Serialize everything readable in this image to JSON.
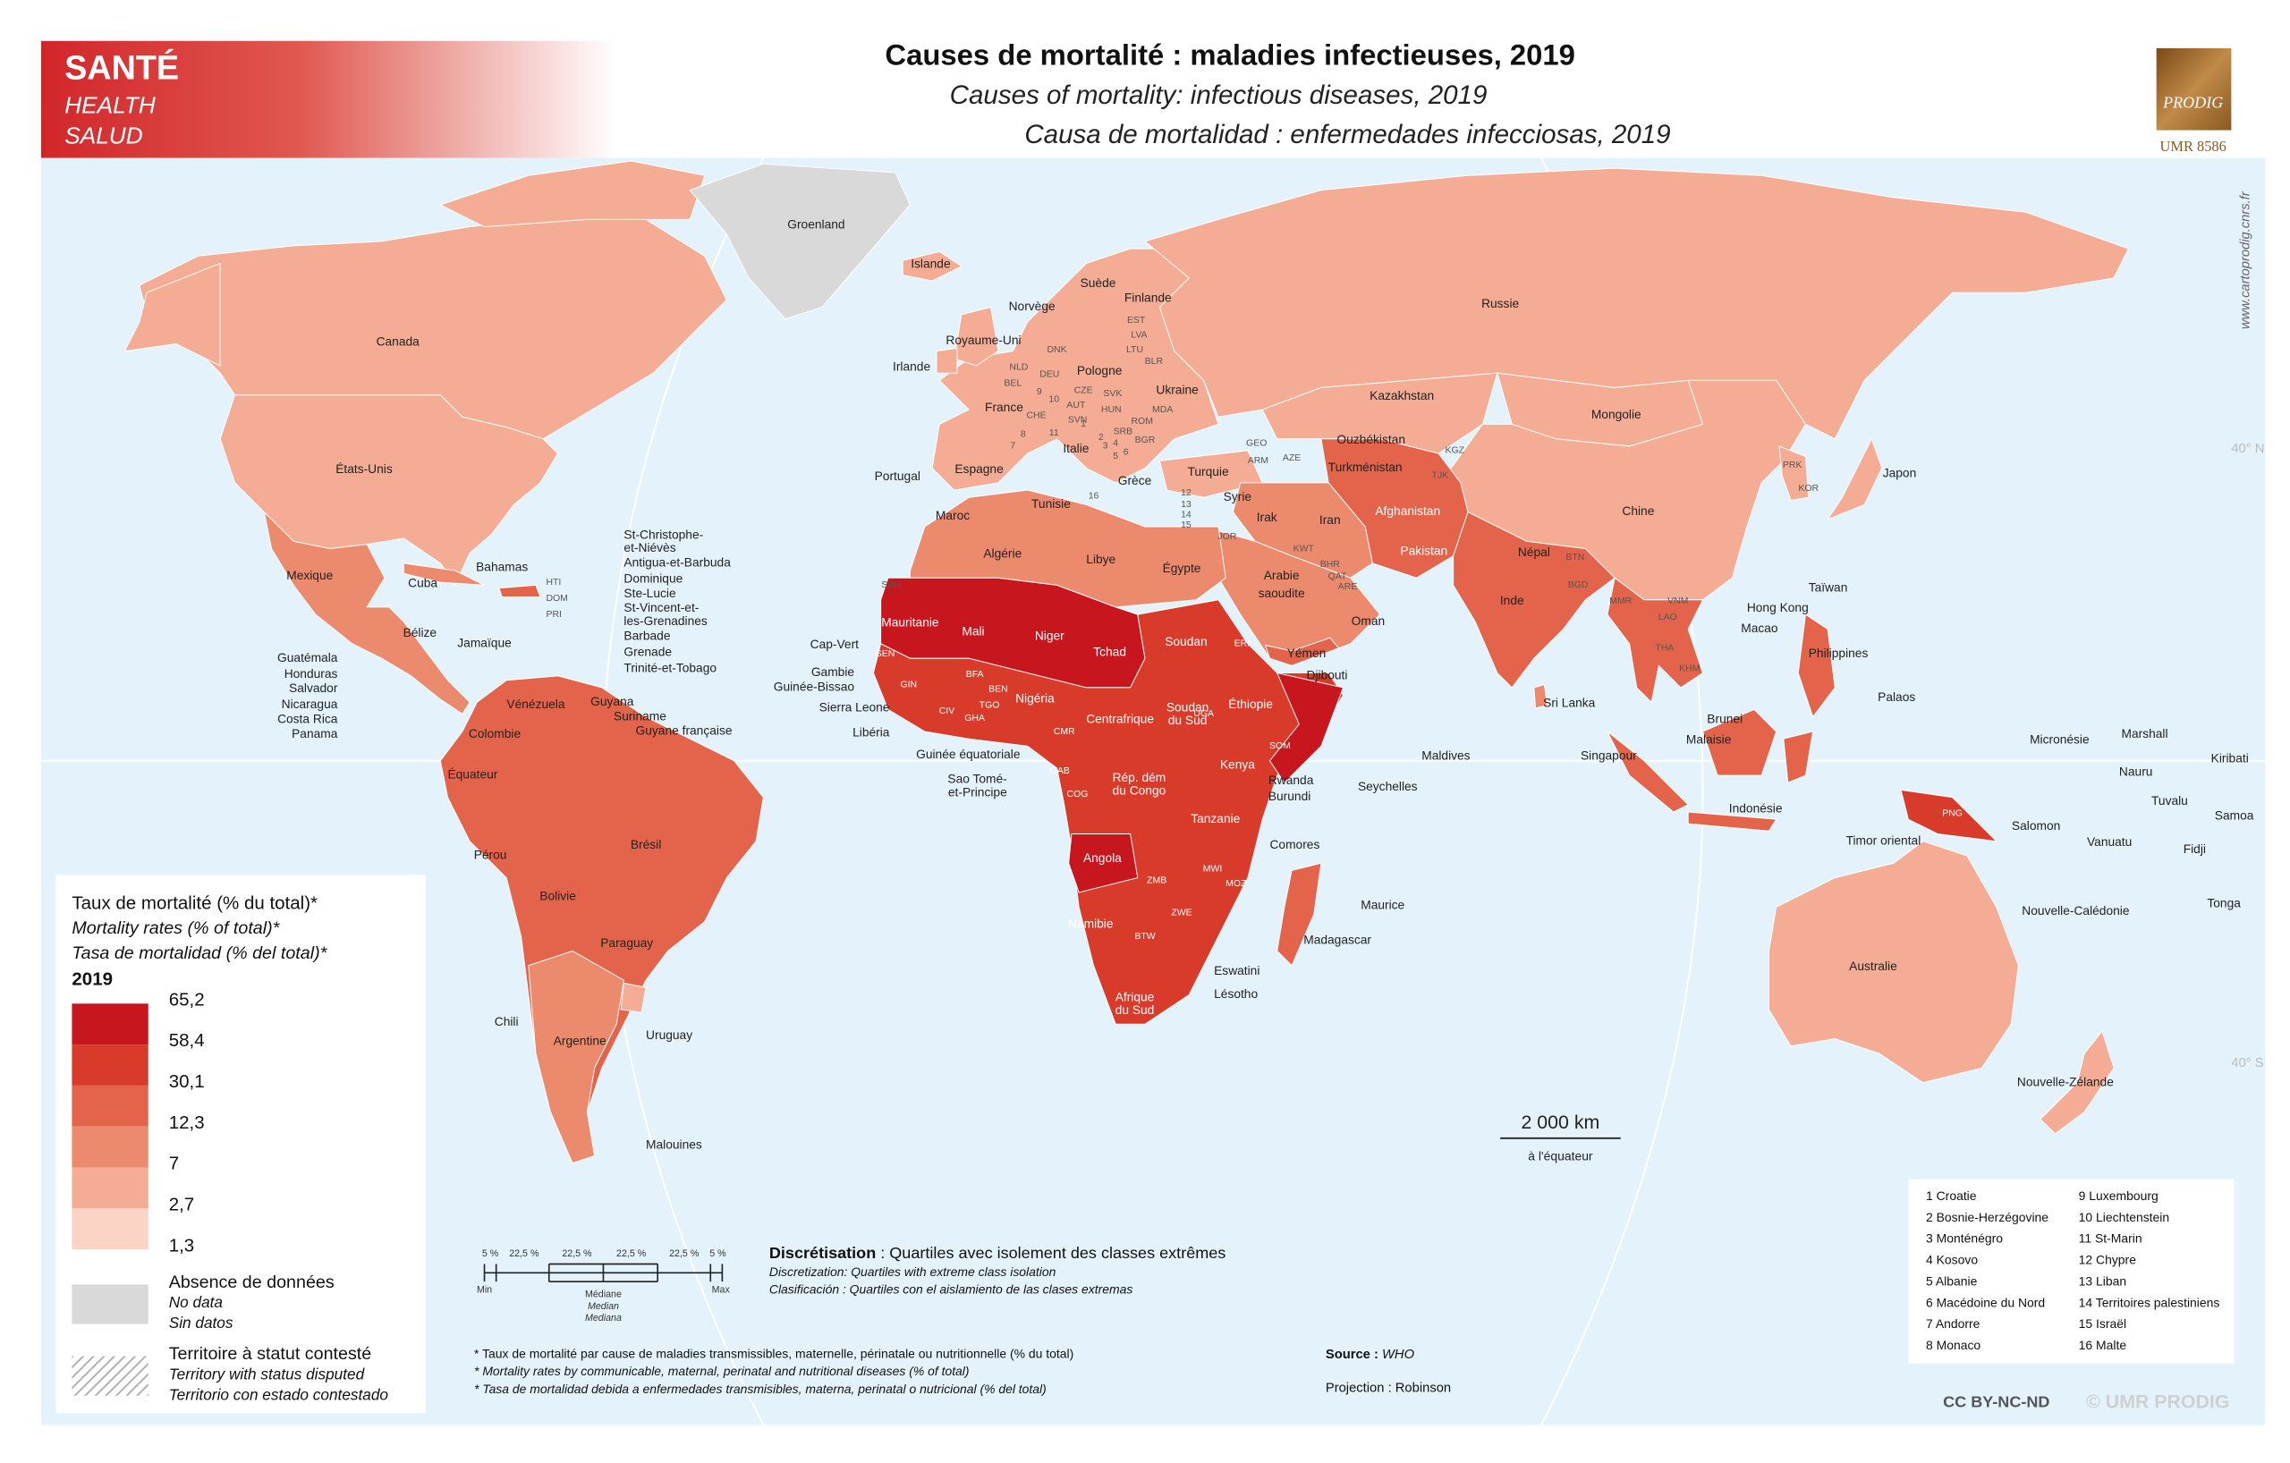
{
  "header": {
    "theme": [
      "SANTÉ",
      "HEALTH",
      "SALUD"
    ],
    "title": "Causes de mortalité : maladies infectieuses, 2019",
    "title_en": "Causes of mortality: infectious diseases, 2019",
    "title_es": "Causa de mortalidad : enfermedades infecciosas, 2019",
    "logo": "PRODIG",
    "lab": "UMR 8586",
    "website": "www.cartoprodig.cnrs.fr"
  },
  "map": {
    "graticule": [
      "40° N",
      "40° S"
    ],
    "scale": {
      "distance": "2 000 km",
      "note": "à l'équateur"
    },
    "labels": [
      "Canada",
      "États-Unis",
      "Mexique",
      "Cuba",
      "Bahamas",
      "Bélize",
      "Jamaïque",
      "Guatémala",
      "Honduras",
      "Salvador",
      "Nicaragua",
      "Costa Rica",
      "Panama",
      "HTI",
      "DOM",
      "PRI",
      "St-Christophe-",
      "et-Niévès",
      "Antigua-et-Barbuda",
      "Dominique",
      "Ste-Lucie",
      "St-Vincent-et-",
      "les-Grenadines",
      "Barbade",
      "Grenade",
      "Trinité-et-Tobago",
      "Vénézuela",
      "Guyana",
      "Suriname",
      "Guyane française",
      "Colombie",
      "Équateur",
      "Pérou",
      "Brésil",
      "Bolivie",
      "Paraguay",
      "Chili",
      "Argentine",
      "Uruguay",
      "Malouines",
      "Groenland",
      "Islande",
      "Norvège",
      "Suède",
      "Finlande",
      "Royaume-Uni",
      "Irlande",
      "DNK",
      "EST",
      "LVA",
      "LTU",
      "BLR",
      "NLD",
      "DEU",
      "BEL",
      "Pologne",
      "CZE",
      "SVK",
      "Ukraine",
      "France",
      "AUT",
      "HUN",
      "MDA",
      "CHE",
      "SVN",
      "ROM",
      "SRB",
      "BGR",
      "Italie",
      "Espagne",
      "Portugal",
      "Grèce",
      "Turquie",
      "GEO",
      "ARM",
      "AZE",
      "Russie",
      "Kazakhstan",
      "Mongolie",
      "Ouzbékistan",
      "KGZ",
      "Turkménistan",
      "TJK",
      "Chine",
      "PRK",
      "KOR",
      "Japon",
      "Afghanistan",
      "Pakistan",
      "Iran",
      "Irak",
      "Syrie",
      "JOR",
      "Arabie",
      "saoudite",
      "KWT",
      "BHR",
      "QAT",
      "ARE",
      "Oman",
      "Yémen",
      "Inde",
      "Népal",
      "BTN",
      "BGD",
      "MMR",
      "VNM",
      "LAO",
      "THA",
      "KHM",
      "Taïwan",
      "Hong Kong",
      "Macao",
      "Philippines",
      "Palaos",
      "Sri Lanka",
      "Maldives",
      "Brunei",
      "Malaisie",
      "Singapour",
      "Indonésie",
      "Timor oriental",
      "PNG",
      "Australie",
      "Nouvelle-Calédonie",
      "Nouvelle-Zélande",
      "Micronésie",
      "Marshall",
      "Kiribati",
      "Nauru",
      "Tuvalu",
      "Samoa",
      "Salomon",
      "Vanuatu",
      "Fidji",
      "Tonga",
      "Maroc",
      "Tunisie",
      "Algérie",
      "Libye",
      "Égypte",
      "SAH",
      "Mauritanie",
      "Mali",
      "Niger",
      "Tchad",
      "Soudan",
      "ERI",
      "Cap-Vert",
      "Gambie",
      "Guinée-Bissao",
      "SEN",
      "GIN",
      "BFA",
      "Sierra Leone",
      "Libéria",
      "CIV",
      "TGO",
      "BEN",
      "GHA",
      "Nigéria",
      "CMR",
      "Centrafrique",
      "Soudan",
      "du Sud",
      "Éthiopie",
      "Djibouti",
      "SOM",
      "Guinée équatoriale",
      "Sao Tomé-",
      "et-Principe",
      "GAB",
      "COG",
      "Rép. dém",
      "du Congo",
      "UGA",
      "Kenya",
      "Rwanda",
      "Burundi",
      "Tanzanie",
      "Angola",
      "ZMB",
      "MWI",
      "MOZ",
      "Comores",
      "Madagascar",
      "Maurice",
      "Seychelles",
      "ZWE",
      "Namibie",
      "BTW",
      "Afrique",
      "du Sud",
      "Eswatini",
      "Lésotho",
      "1",
      "2",
      "3",
      "4",
      "5",
      "6",
      "7",
      "8",
      "9",
      "10",
      "11",
      "12",
      "13",
      "14",
      "15",
      "16"
    ]
  },
  "legend": {
    "title": "Taux de mortalité (% du total)*",
    "title_en": "Mortality rates (% of total)*",
    "title_es": "Tasa de mortalidad (% del total)*",
    "year": "2019",
    "class_labels": [
      "65,2",
      "58,4",
      "30,1",
      "12,3",
      "7",
      "2,7",
      "1,3"
    ],
    "colors": [
      "#c8161e",
      "#d93b2b",
      "#e3644a",
      "#ec8a6e",
      "#f4ac94",
      "#fbd4c6"
    ],
    "no_data": [
      "Absence de données",
      "No data",
      "Sin datos"
    ],
    "no_data_color": "#d9d9d9",
    "disputed": [
      "Territoire à statut contesté",
      "Territory with status disputed",
      "Territorio con estado contestado"
    ]
  },
  "discretization": {
    "percentiles": [
      "5 %",
      "22,5 %",
      "22,5 %",
      "22,5 %",
      "22,5 %",
      "5 %"
    ],
    "min": "Min",
    "max": "Max",
    "median": [
      "Médiane",
      "Median",
      "Mediana"
    ],
    "label": "Discrétisation",
    "text": " : Quartiles avec isolement des classes extrêmes",
    "text_en": "Discretization: Quartiles with extreme class isolation",
    "text_es": "Clasificación : Quartiles con el aislamiento de las clases extremas"
  },
  "footnotes": [
    "* Taux de mortalité par cause de maladies transmissibles, maternelle, périnatale ou nutritionnelle (% du total)",
    "* Mortality rates by communicable, maternal, perinatal and nutritional diseases (% of total)",
    "* Tasa de mortalidad debida a enfermedades transmisibles, materna, perinatal o nutricional (% del total)"
  ],
  "source": {
    "label": "Source : ",
    "value": "WHO"
  },
  "projection": "Projection : Robinson",
  "key_list": [
    "1 Croatie",
    "2 Bosnie-Herzégovine",
    "3 Monténégro",
    "4 Kosovo",
    "5 Albanie",
    "6 Macédoine du Nord",
    "7 Andorre",
    "8 Monaco",
    "9 Luxembourg",
    "10 Liechtenstein",
    "11 St-Marin",
    "12 Chypre",
    "13 Liban",
    "14 Territoires palestiniens",
    "15 Israël",
    "16 Malte"
  ],
  "license": "CC BY-NC-ND",
  "copyright": "© UMR PRODIG"
}
